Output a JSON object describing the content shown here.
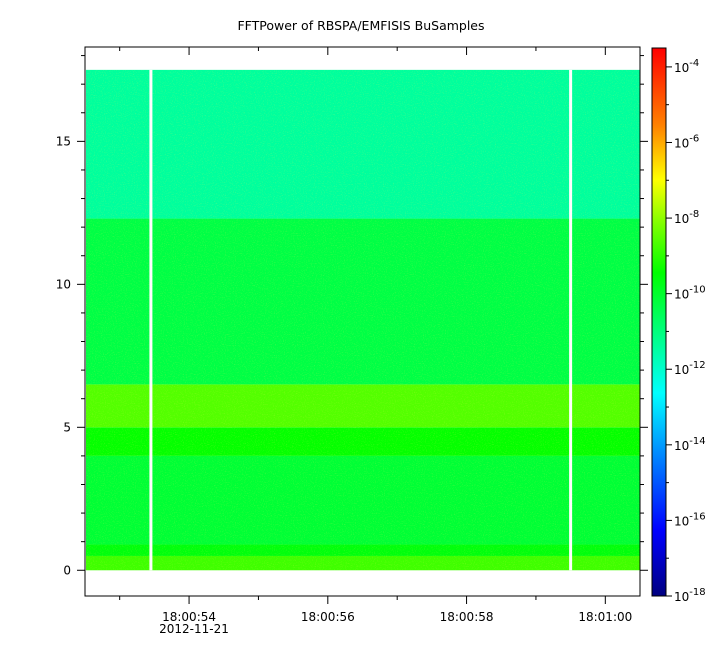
{
  "chart_data": {
    "type": "heatmap",
    "title": "FFTPower of RBSPA/EMFISIS  BuSamples",
    "xlabel": "",
    "ylabel": "",
    "x_tick_labels": [
      "18:00:54",
      "18:00:56",
      "18:00:58",
      "18:01:00"
    ],
    "x_tick_values_sec": [
      54,
      56,
      58,
      60
    ],
    "x_minor_tick_values_sec": [
      53,
      55,
      57,
      59
    ],
    "x_date_label": "2012-11-21",
    "xlim_sec": [
      52.5,
      60.5
    ],
    "y_tick_labels": [
      "0",
      "5",
      "10",
      "15"
    ],
    "y_tick_values": [
      0,
      5,
      10,
      15
    ],
    "ylim": [
      -0.9,
      18.3
    ],
    "data_yrange": [
      0,
      17.5
    ],
    "colorbar": {
      "scale": "log",
      "range_exp": [
        -18,
        -3.5
      ],
      "tick_exponents": [
        -4,
        -6,
        -8,
        -10,
        -12,
        -14,
        -16,
        -18
      ],
      "base": "10"
    },
    "gaps_sec": [
      53.45,
      59.5
    ],
    "bands": [
      {
        "y": [
          0,
          0.5
        ],
        "log_power": -8.8
      },
      {
        "y": [
          0.5,
          0.9
        ],
        "log_power": -9.6
      },
      {
        "y": [
          0.9,
          4.0
        ],
        "log_power": -10.1
      },
      {
        "y": [
          4.0,
          5.0
        ],
        "log_power": -9.4
      },
      {
        "y": [
          5.0,
          6.5
        ],
        "log_power": -8.6
      },
      {
        "y": [
          6.5,
          12.3
        ],
        "log_power": -10.3
      },
      {
        "y": [
          12.3,
          17.5
        ],
        "log_power": -11.4
      }
    ],
    "colors": {
      "band_low": "#34e634",
      "band_mid": "#e6e634",
      "band_high": "#26e880"
    }
  }
}
